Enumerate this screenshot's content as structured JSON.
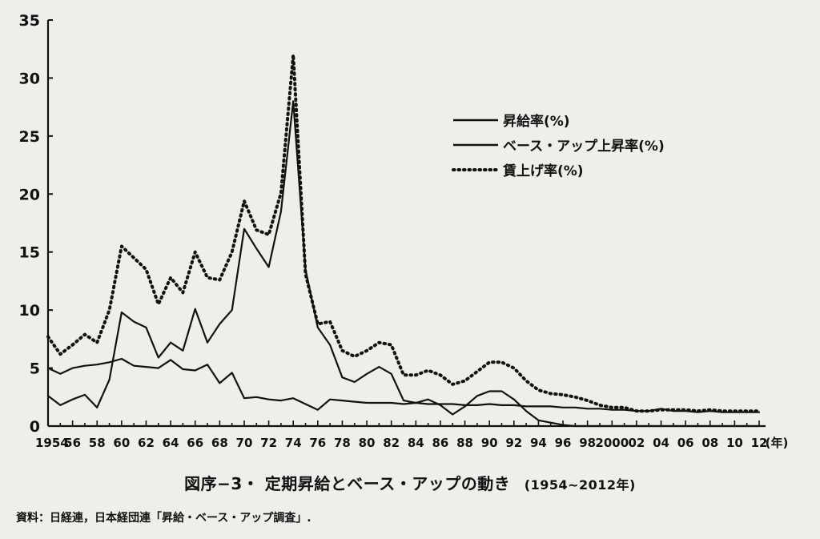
{
  "chart_data": {
    "type": "line",
    "x": [
      1954,
      1955,
      1956,
      1957,
      1958,
      1959,
      1960,
      1961,
      1962,
      1963,
      1964,
      1965,
      1966,
      1967,
      1968,
      1969,
      1970,
      1971,
      1972,
      1973,
      1974,
      1975,
      1976,
      1977,
      1978,
      1979,
      1980,
      1981,
      1982,
      1983,
      1984,
      1985,
      1986,
      1987,
      1988,
      1989,
      1990,
      1991,
      1992,
      1993,
      1994,
      1995,
      1996,
      1997,
      1998,
      1999,
      2000,
      2001,
      2002,
      2003,
      2004,
      2005,
      2006,
      2007,
      2008,
      2009,
      2010,
      2011,
      2012
    ],
    "series": [
      {
        "name": "昇給率(%)",
        "style": "solid",
        "values": [
          2.6,
          1.8,
          2.3,
          2.7,
          1.6,
          4.0,
          9.8,
          9.0,
          8.5,
          5.9,
          7.2,
          6.5,
          10.1,
          7.2,
          8.8,
          10.0,
          17.0,
          15.3,
          13.7,
          18.5,
          28.0,
          13.5,
          8.5,
          7.0,
          4.2,
          3.8,
          4.5,
          5.1,
          4.5,
          2.2,
          2.0,
          2.3,
          1.8,
          1.0,
          1.7,
          2.6,
          3.0,
          3.0,
          2.3,
          1.3,
          0.5,
          0.3,
          0.1,
          0.0,
          0.0,
          0.0,
          0.0,
          0.0,
          0.0,
          0.0,
          0.0,
          0.0,
          0.0,
          0.0,
          0.0,
          0.0,
          0.0,
          0.0,
          0.0
        ]
      },
      {
        "name": "ベース・アップ上昇率(%)",
        "style": "solid",
        "values": [
          5.0,
          4.5,
          5.0,
          5.2,
          5.3,
          5.5,
          5.8,
          5.2,
          5.1,
          5.0,
          5.7,
          4.9,
          4.8,
          5.3,
          3.7,
          4.6,
          2.4,
          2.5,
          2.3,
          2.2,
          2.4,
          1.9,
          1.4,
          2.3,
          2.2,
          2.1,
          2.0,
          2.0,
          2.0,
          1.9,
          2.0,
          1.9,
          1.9,
          1.9,
          1.8,
          1.8,
          1.9,
          1.8,
          1.8,
          1.7,
          1.7,
          1.7,
          1.6,
          1.6,
          1.5,
          1.5,
          1.4,
          1.4,
          1.3,
          1.3,
          1.5,
          1.3,
          1.3,
          1.2,
          1.3,
          1.2,
          1.2,
          1.2,
          1.2
        ]
      },
      {
        "name": "賃上げ率(%)",
        "style": "dotted",
        "values": [
          7.7,
          6.2,
          7.0,
          7.9,
          7.2,
          10.0,
          15.5,
          14.5,
          13.5,
          10.5,
          12.8,
          11.5,
          15.0,
          12.8,
          12.6,
          15.0,
          19.4,
          16.9,
          16.5,
          20.1,
          32.0,
          13.1,
          8.8,
          9.0,
          6.5,
          6.0,
          6.5,
          7.2,
          7.0,
          4.4,
          4.4,
          4.8,
          4.4,
          3.6,
          3.9,
          4.7,
          5.5,
          5.5,
          5.0,
          3.9,
          3.1,
          2.8,
          2.7,
          2.5,
          2.2,
          1.8,
          1.6,
          1.6,
          1.3,
          1.3,
          1.4,
          1.4,
          1.4,
          1.3,
          1.4,
          1.3,
          1.3,
          1.3,
          1.3
        ]
      }
    ],
    "x_tick_labels": [
      "1954",
      "56",
      "58",
      "60",
      "62",
      "64",
      "66",
      "68",
      "70",
      "72",
      "74",
      "76",
      "78",
      "80",
      "82",
      "84",
      "86",
      "88",
      "90",
      "92",
      "94",
      "96",
      "98",
      "2000",
      "02",
      "04",
      "06",
      "08",
      "10",
      "12",
      "(年)"
    ],
    "y_ticks": [
      0,
      5,
      10,
      15,
      20,
      25,
      30,
      35
    ],
    "xlim": [
      1954,
      2012
    ],
    "ylim": [
      0,
      35
    ],
    "grid": false,
    "legend_position": "top-right",
    "title": "図序−3・ 定期昇給とベース・アップの動き",
    "subtitle": "(1954~2012年)",
    "source": "資料：日経連，日本経団連「昇給・ベース・アップ調査」."
  },
  "colors": {
    "background": "#eeeeea",
    "line": "#111111"
  }
}
